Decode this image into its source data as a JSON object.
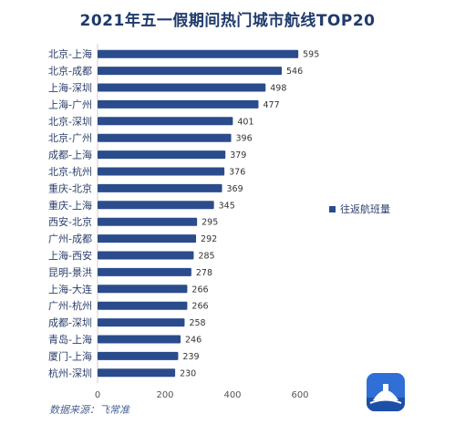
{
  "chart_data": {
    "type": "bar",
    "orientation": "horizontal",
    "title": "2021年五一假期间热门城市航线TOP20",
    "categories": [
      "北京-上海",
      "北京-成都",
      "上海-深圳",
      "上海-广州",
      "北京-深圳",
      "北京-广州",
      "成都-上海",
      "北京-杭州",
      "重庆-北京",
      "重庆-上海",
      "西安-北京",
      "广州-成都",
      "上海-西安",
      "昆明-景洪",
      "上海-大连",
      "广州-杭州",
      "成都-深圳",
      "青岛-上海",
      "厦门-上海",
      "杭州-深圳"
    ],
    "series": [
      {
        "name": "往返航班量",
        "values": [
          595,
          546,
          498,
          477,
          401,
          396,
          379,
          376,
          369,
          345,
          295,
          292,
          285,
          278,
          266,
          266,
          258,
          246,
          239,
          230
        ]
      }
    ],
    "xlim": [
      0,
      600
    ],
    "xticks": [
      "0",
      "200",
      "400",
      "600"
    ],
    "data_labels": true,
    "legend_position": "right",
    "bar_color": "#2b4c8c",
    "grid": false
  },
  "footer": {
    "source": "数据来源：飞常准",
    "logo_icon": "feichangzhun-logo-icon"
  }
}
